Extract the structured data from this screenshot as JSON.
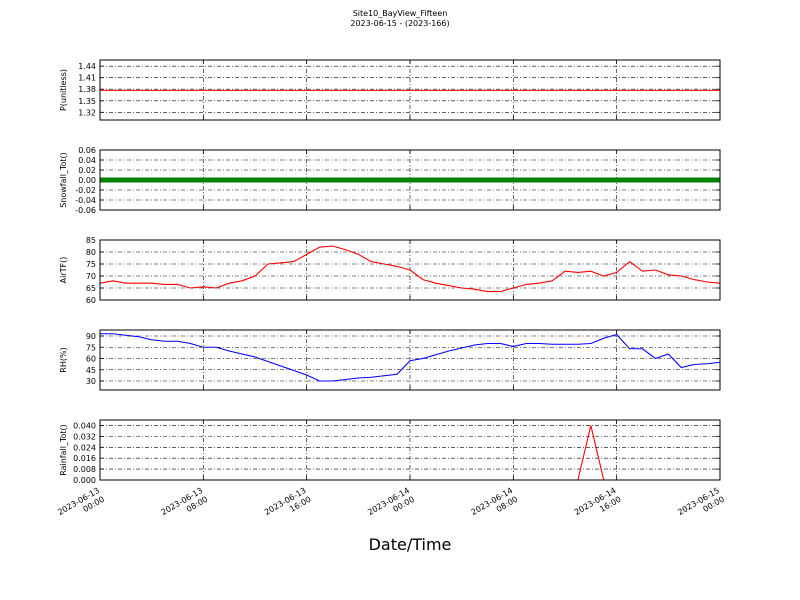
{
  "chart_data": {
    "type": "line",
    "title": "Site10_BayView_Fifteen",
    "subtitle": "2023-06-15 - (2023-166)",
    "x_label": "Date/Time",
    "xlim": [
      "2023-06-13 00:00",
      "2023-06-15 00:00"
    ],
    "xticks": [
      {
        "value": "2023-06-13 00:00",
        "label": "2023-06-13\n00:00"
      },
      {
        "value": "2023-06-13 08:00",
        "label": "2023-06-13\n08:00"
      },
      {
        "value": "2023-06-13 16:00",
        "label": "2023-06-13\n16:00"
      },
      {
        "value": "2023-06-14 00:00",
        "label": "2023-06-14\n00:00"
      },
      {
        "value": "2023-06-14 08:00",
        "label": "2023-06-14\n08:00"
      },
      {
        "value": "2023-06-14 16:00",
        "label": "2023-06-14\n16:00"
      },
      {
        "value": "2023-06-15 00:00",
        "label": "2023-06-15\n00:00"
      }
    ],
    "grid": true,
    "x": [
      "2023-06-13 00:00",
      "2023-06-13 01:00",
      "2023-06-13 02:00",
      "2023-06-13 03:00",
      "2023-06-13 04:00",
      "2023-06-13 05:00",
      "2023-06-13 06:00",
      "2023-06-13 07:00",
      "2023-06-13 08:00",
      "2023-06-13 09:00",
      "2023-06-13 10:00",
      "2023-06-13 11:00",
      "2023-06-13 12:00",
      "2023-06-13 13:00",
      "2023-06-13 14:00",
      "2023-06-13 15:00",
      "2023-06-13 16:00",
      "2023-06-13 17:00",
      "2023-06-13 18:00",
      "2023-06-13 19:00",
      "2023-06-13 20:00",
      "2023-06-13 21:00",
      "2023-06-13 22:00",
      "2023-06-13 23:00",
      "2023-06-14 00:00",
      "2023-06-14 01:00",
      "2023-06-14 02:00",
      "2023-06-14 03:00",
      "2023-06-14 04:00",
      "2023-06-14 05:00",
      "2023-06-14 06:00",
      "2023-06-14 07:00",
      "2023-06-14 08:00",
      "2023-06-14 09:00",
      "2023-06-14 10:00",
      "2023-06-14 11:00",
      "2023-06-14 12:00",
      "2023-06-14 13:00",
      "2023-06-14 14:00",
      "2023-06-14 15:00",
      "2023-06-14 16:00",
      "2023-06-14 17:00",
      "2023-06-14 18:00",
      "2023-06-14 19:00",
      "2023-06-14 20:00",
      "2023-06-14 21:00",
      "2023-06-14 22:00",
      "2023-06-14 23:00",
      "2023-06-15 00:00"
    ],
    "panels": [
      {
        "y_label": "P(unitless)",
        "color": "#ff0000",
        "ylim": [
          1.3,
          1.456
        ],
        "yticks": [
          1.32,
          1.35,
          1.38,
          1.41,
          1.44
        ],
        "values": [
          1.377,
          1.377,
          1.377,
          1.377,
          1.377,
          1.377,
          1.377,
          1.377,
          1.377,
          1.377,
          1.377,
          1.377,
          1.377,
          1.377,
          1.377,
          1.377,
          1.377,
          1.377,
          1.377,
          1.377,
          1.377,
          1.377,
          1.377,
          1.377,
          1.377,
          1.377,
          1.377,
          1.377,
          1.377,
          1.377,
          1.377,
          1.377,
          1.377,
          1.377,
          1.377,
          1.377,
          1.377,
          1.377,
          1.377,
          1.377,
          1.377,
          1.377,
          1.377,
          1.377,
          1.377,
          1.377,
          1.377,
          1.377,
          1.377
        ]
      },
      {
        "y_label": "Snowfall_Tot()",
        "color": "#008000",
        "ylim": [
          -0.06,
          0.06
        ],
        "yticks": [
          -0.06,
          -0.04,
          -0.02,
          {
            "value": 0,
            "label": "0.00"
          },
          0.02,
          0.04,
          0.06
        ],
        "values": [
          0,
          0,
          0,
          0,
          0,
          0,
          0,
          0,
          0,
          0,
          0,
          0,
          0,
          0,
          0,
          0,
          0,
          0,
          0,
          0,
          0,
          0,
          0,
          0,
          0,
          0,
          0,
          0,
          0,
          0,
          0,
          0,
          0,
          0,
          0,
          0,
          0,
          0,
          0,
          0,
          0,
          0,
          0,
          0,
          0,
          0,
          0,
          0,
          0
        ]
      },
      {
        "y_label": "AirTF()",
        "color": "#ff0000",
        "ylim": [
          60,
          85
        ],
        "yticks": [
          60,
          65,
          70,
          75,
          80,
          85
        ],
        "values": [
          67,
          68,
          67,
          67,
          67,
          66.5,
          66.5,
          65,
          65.5,
          65,
          67,
          68,
          70,
          75,
          75.5,
          76,
          79,
          82,
          82.5,
          81,
          79,
          76,
          75,
          74,
          72.5,
          68.5,
          67,
          66,
          65,
          64.5,
          63.5,
          63.5,
          65,
          66.5,
          67,
          68,
          72,
          71.5,
          72,
          70,
          71.5,
          76,
          72,
          72.5,
          70.5,
          70,
          68.5,
          67.5,
          67
        ]
      },
      {
        "y_label": "RH(%)",
        "color": "#0000ff",
        "ylim": [
          18,
          98
        ],
        "yticks": [
          30,
          45,
          60,
          75,
          90
        ],
        "values": [
          93,
          93,
          91,
          89,
          85,
          83,
          83,
          80,
          75,
          75,
          70,
          66,
          62,
          56,
          50,
          44,
          38,
          30,
          30,
          32,
          34,
          35,
          37,
          39,
          57,
          60,
          65,
          70,
          74,
          78,
          80,
          80,
          76,
          80,
          80,
          79,
          79,
          79,
          80,
          87,
          92,
          73,
          73,
          60,
          66,
          48,
          52,
          53,
          55
        ]
      },
      {
        "y_label": "Rainfall_Tot()",
        "color": "#ff0000",
        "ylim": [
          0,
          0.044
        ],
        "yticks": [
          {
            "value": 0,
            "label": "0.000"
          },
          {
            "value": 0.008,
            "label": "0.008"
          },
          {
            "value": 0.016,
            "label": "0.016"
          },
          {
            "value": 0.024,
            "label": "0.024"
          },
          {
            "value": 0.032,
            "label": "0.032"
          },
          {
            "value": 0.04,
            "label": "0.040"
          }
        ],
        "values": [
          0,
          0,
          0,
          0,
          0,
          0,
          0,
          0,
          0,
          0,
          0,
          0,
          0,
          0,
          0,
          0,
          0,
          0,
          0,
          0,
          0,
          0,
          0,
          0,
          0,
          0,
          0,
          0,
          0,
          0,
          0,
          0,
          0,
          0,
          0,
          0,
          0,
          0,
          0.04,
          0,
          0,
          0,
          0,
          0,
          0,
          0,
          0,
          0,
          0
        ]
      }
    ]
  }
}
